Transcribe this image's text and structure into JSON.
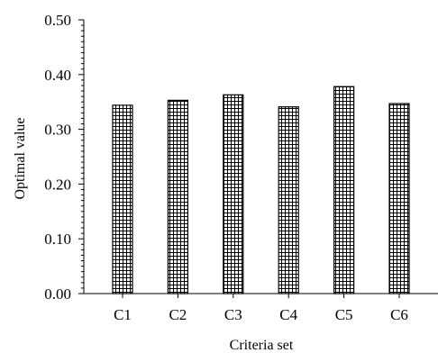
{
  "chart_data": {
    "type": "bar",
    "title": "",
    "xlabel": "Criteria set",
    "ylabel": "Optimal value",
    "categories": [
      "C1",
      "C2",
      "C3",
      "C4",
      "C5",
      "C6"
    ],
    "values": [
      0.344,
      0.353,
      0.363,
      0.341,
      0.378,
      0.347
    ],
    "ylim": [
      0,
      0.5
    ],
    "yticks": [
      "0.00",
      "0.10",
      "0.20",
      "0.30",
      "0.40",
      "0.50"
    ],
    "grid": false,
    "bar_fill": "grid-hatch",
    "colors": {
      "axis": "#000000",
      "bar_outline": "#000000",
      "hatch": "#000000",
      "background": "#ffffff"
    }
  }
}
